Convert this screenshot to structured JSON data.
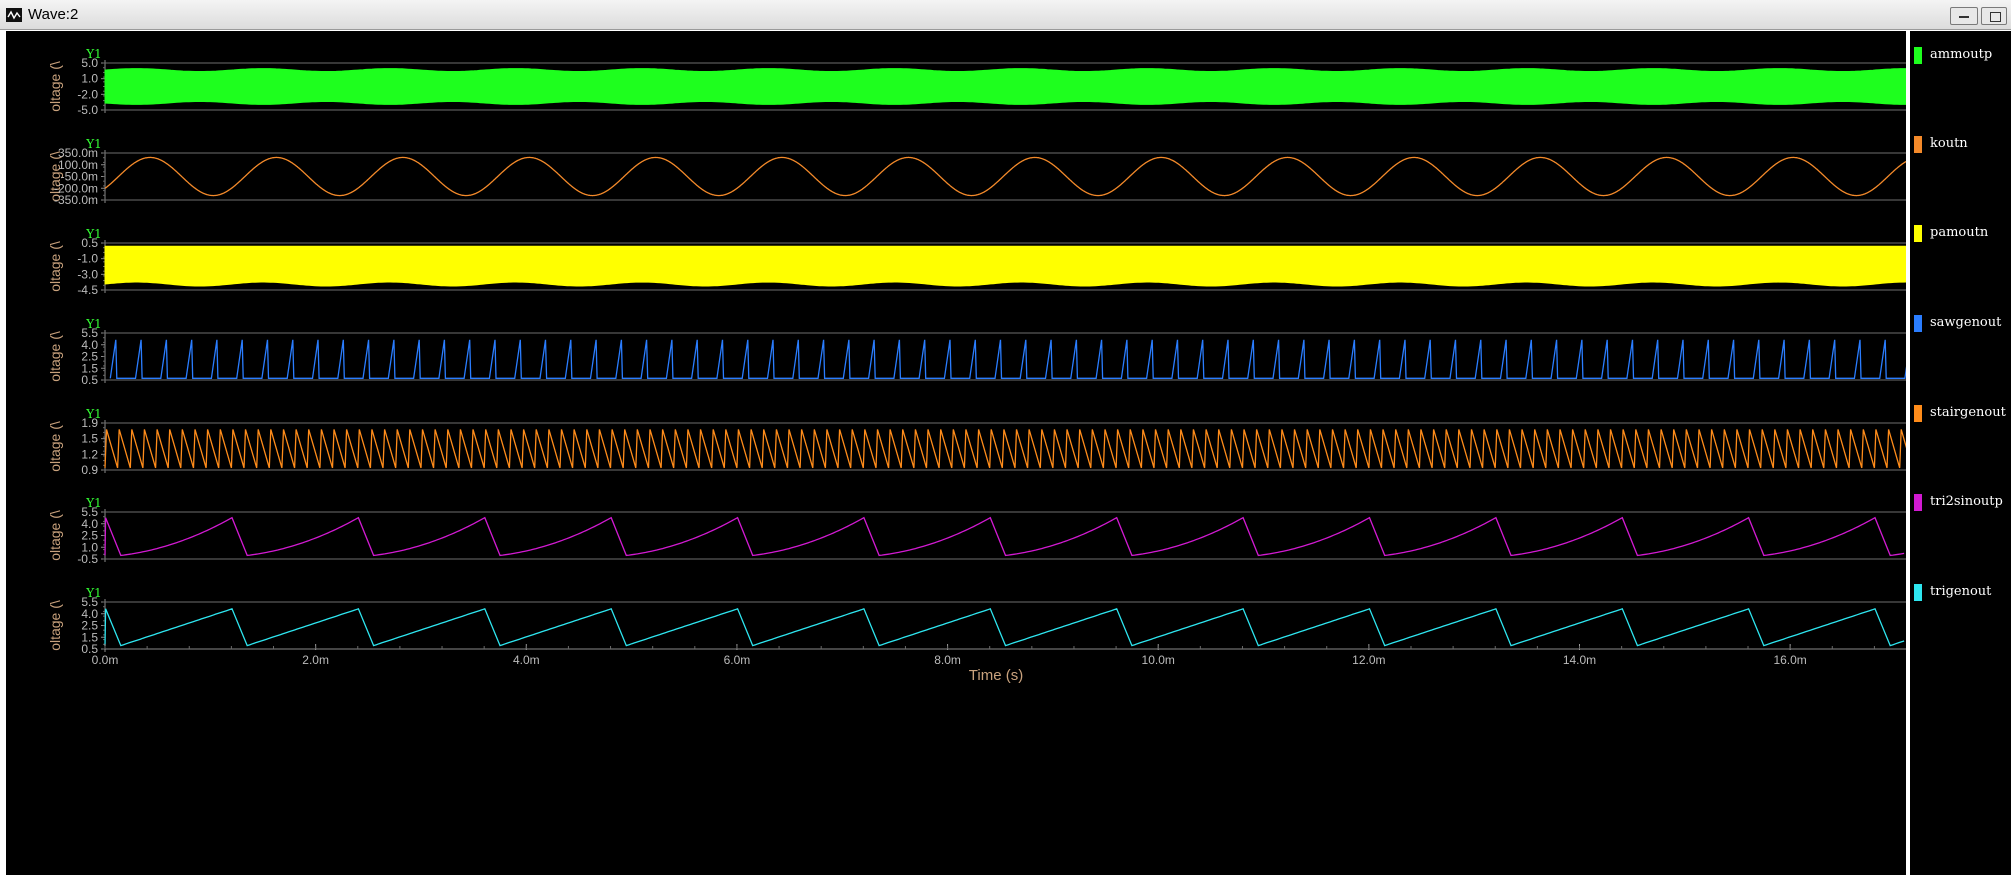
{
  "window": {
    "title": "Wave:2"
  },
  "legend": [
    {
      "label": "ammoutp",
      "color": "#1eff1e"
    },
    {
      "label": "koutn",
      "color": "#f48a2a"
    },
    {
      "label": "pamoutn",
      "color": "#ffff00"
    },
    {
      "label": "sawgenout",
      "color": "#2a7dff"
    },
    {
      "label": "stairgenout",
      "color": "#ff8c1a"
    },
    {
      "label": "tri2sinoutp",
      "color": "#d21ad2"
    },
    {
      "label": "trigenout",
      "color": "#2ee6f0"
    }
  ],
  "chart_data": {
    "type": "line",
    "xlabel": "Time (s)",
    "x_ticks": [
      "0.0m",
      "2.0m",
      "4.0m",
      "6.0m",
      "8.0m",
      "10.0m",
      "12.0m",
      "14.0m",
      "16.0m"
    ],
    "xlim": [
      0,
      0.0171
    ],
    "panels": [
      {
        "series": "ammoutp",
        "y_title": "Y1",
        "ylabel": "oltage (\\",
        "y_ticks": [
          "5.0",
          "1.0",
          "-2.0",
          "-5.0"
        ],
        "ylim": [
          -5.5,
          5.5
        ],
        "color": "#1eff1e",
        "shape": "am_filled",
        "amplitude_range": [
          3.5,
          4.2
        ],
        "envelope_period_ms": 1.2
      },
      {
        "series": "koutn",
        "y_title": "Y1",
        "ylabel": "oltage (\\",
        "y_ticks": [
          "350.0m",
          "100.0m",
          "-50.0m",
          "-200.0m",
          "-350.0m"
        ],
        "ylim": [
          -0.37,
          0.37
        ],
        "color": "#f48a2a",
        "shape": "sine",
        "period_ms": 1.2,
        "amplitude": 0.3,
        "offset": 0.0
      },
      {
        "series": "pamoutn",
        "y_title": "Y1",
        "ylabel": "oltage (\\",
        "y_ticks": [
          "0.5",
          "-1.0",
          "-3.0",
          "-4.5"
        ],
        "ylim": [
          -5.0,
          0.9
        ],
        "color": "#ffff00",
        "shape": "pam_filled",
        "top": 0.5,
        "bottom_range": [
          -4.0,
          -4.5
        ],
        "envelope_period_ms": 1.2
      },
      {
        "series": "sawgenout",
        "y_title": "Y1",
        "ylabel": "oltage (\\",
        "y_ticks": [
          "5.5",
          "4.0",
          "2.5",
          "1.5",
          "0.5"
        ],
        "ylim": [
          0.3,
          5.8
        ],
        "color": "#2a7dff",
        "shape": "sawtooth_rise",
        "period_ms": 0.24,
        "low": 0.5,
        "high": 5.0
      },
      {
        "series": "stairgenout",
        "y_title": "Y1",
        "ylabel": "oltage (\\",
        "y_ticks": [
          "1.9",
          "1.5",
          "1.2",
          "0.9"
        ],
        "ylim": [
          0.85,
          1.95
        ],
        "color": "#ff8c1a",
        "shape": "sawtooth_fall",
        "period_ms": 0.12,
        "low": 0.9,
        "high": 1.8
      },
      {
        "series": "tri2sinoutp",
        "y_title": "Y1",
        "ylabel": "oltage (\\",
        "y_ticks": [
          "5.5",
          "4.0",
          "2.5",
          "1.0",
          "-0.5"
        ],
        "ylim": [
          -0.8,
          5.8
        ],
        "color": "#d21ad2",
        "shape": "ramp_curve",
        "period_ms": 1.2,
        "low": -0.3,
        "high": 5.0
      },
      {
        "series": "trigenout",
        "y_title": "Y1",
        "ylabel": "oltage (\\",
        "y_ticks": [
          "5.5",
          "4.0",
          "2.5",
          "1.5",
          "0.5"
        ],
        "ylim": [
          0.3,
          5.8
        ],
        "color": "#2ee6f0",
        "shape": "ramp_linear",
        "period_ms": 1.2,
        "low": 0.7,
        "high": 5.0
      }
    ]
  }
}
